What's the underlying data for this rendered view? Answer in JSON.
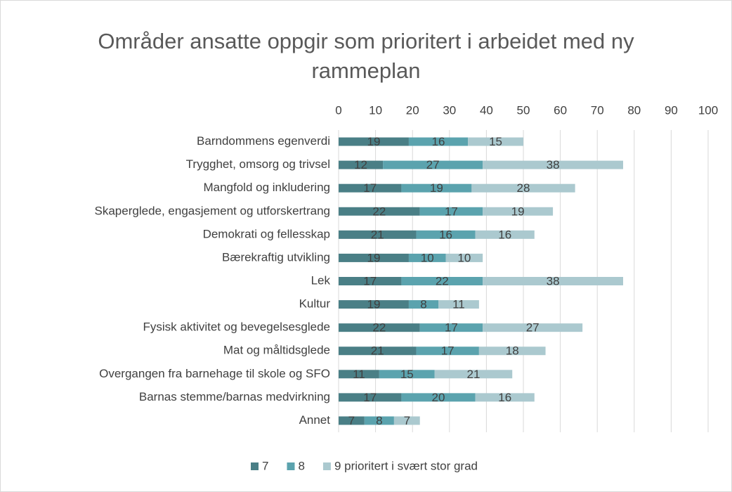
{
  "chart_data": {
    "type": "stacked_barh",
    "title": "Områder ansatte oppgir som prioritert i arbeidet med ny rammeplan",
    "categories": [
      "Barndommens egenverdi",
      "Trygghet, omsorg og trivsel",
      "Mangfold og inkludering",
      "Skaperglede, engasjement og utforskertrang",
      "Demokrati og fellesskap",
      "Bærekraftig utvikling",
      "Lek",
      "Kultur",
      "Fysisk aktivitet og bevegelsesglede",
      "Mat og måltidsglede",
      "Overgangen fra barnehage til skole og SFO",
      "Barnas stemme/barnas medvirkning",
      "Annet"
    ],
    "series": [
      {
        "name": "7",
        "color": "#4a7f86",
        "values": [
          19,
          12,
          17,
          22,
          21,
          19,
          17,
          19,
          22,
          21,
          11,
          17,
          7
        ]
      },
      {
        "name": "8",
        "color": "#5ba3ae",
        "values": [
          16,
          27,
          19,
          17,
          16,
          10,
          22,
          8,
          17,
          17,
          15,
          20,
          8
        ]
      },
      {
        "name": "9 prioritert i svært stor grad",
        "color": "#abc9cf",
        "values": [
          15,
          38,
          28,
          19,
          16,
          10,
          38,
          11,
          27,
          18,
          21,
          16,
          7
        ]
      }
    ],
    "xlim": [
      0,
      100
    ],
    "xticks": [
      0,
      10,
      20,
      30,
      40,
      50,
      60,
      70,
      80,
      90,
      100
    ],
    "grid": true,
    "legend": "bottom"
  }
}
